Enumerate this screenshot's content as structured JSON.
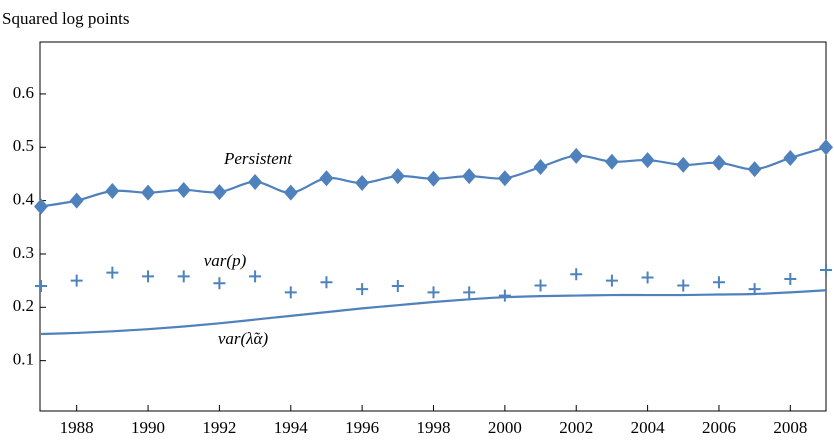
{
  "chart_data": {
    "type": "line",
    "y_label": "Squared log points",
    "x": [
      1987,
      1988,
      1989,
      1990,
      1991,
      1992,
      1993,
      1994,
      1995,
      1996,
      1997,
      1998,
      1999,
      2000,
      2001,
      2002,
      2003,
      2004,
      2005,
      2006,
      2007,
      2008,
      2009
    ],
    "series": [
      {
        "name": "Persistent",
        "color": "#4f81bd",
        "marker": "diamond",
        "line": true,
        "values": [
          0.389,
          0.4,
          0.418,
          0.415,
          0.42,
          0.416,
          0.435,
          0.415,
          0.442,
          0.433,
          0.446,
          0.441,
          0.446,
          0.442,
          0.463,
          0.484,
          0.473,
          0.476,
          0.467,
          0.471,
          0.459,
          0.48,
          0.5
        ]
      },
      {
        "name": "var(p)",
        "color": "#4f81bd",
        "marker": "plus",
        "line": false,
        "values": [
          0.24,
          0.25,
          0.265,
          0.258,
          0.258,
          0.245,
          0.258,
          0.228,
          0.247,
          0.234,
          0.24,
          0.228,
          0.228,
          0.222,
          0.241,
          0.262,
          0.25,
          0.256,
          0.241,
          0.247,
          0.234,
          0.253,
          0.27
        ]
      },
      {
        "name": "var(λ̃α)",
        "color": "#4f81bd",
        "marker": "none",
        "line": true,
        "values": [
          0.15,
          0.152,
          0.155,
          0.159,
          0.164,
          0.17,
          0.177,
          0.184,
          0.191,
          0.198,
          0.204,
          0.21,
          0.215,
          0.219,
          0.221,
          0.222,
          0.223,
          0.223,
          0.223,
          0.224,
          0.225,
          0.228,
          0.232
        ]
      }
    ],
    "xlim": [
      1987,
      2009
    ],
    "ylim": [
      0,
      0.7
    ],
    "xticks": [
      1988,
      1990,
      1992,
      1994,
      1996,
      1998,
      2000,
      2002,
      2004,
      2006,
      2008
    ],
    "yticks": [
      0.1,
      0.2,
      0.3,
      0.4,
      0.5,
      0.6
    ],
    "grid": false
  }
}
